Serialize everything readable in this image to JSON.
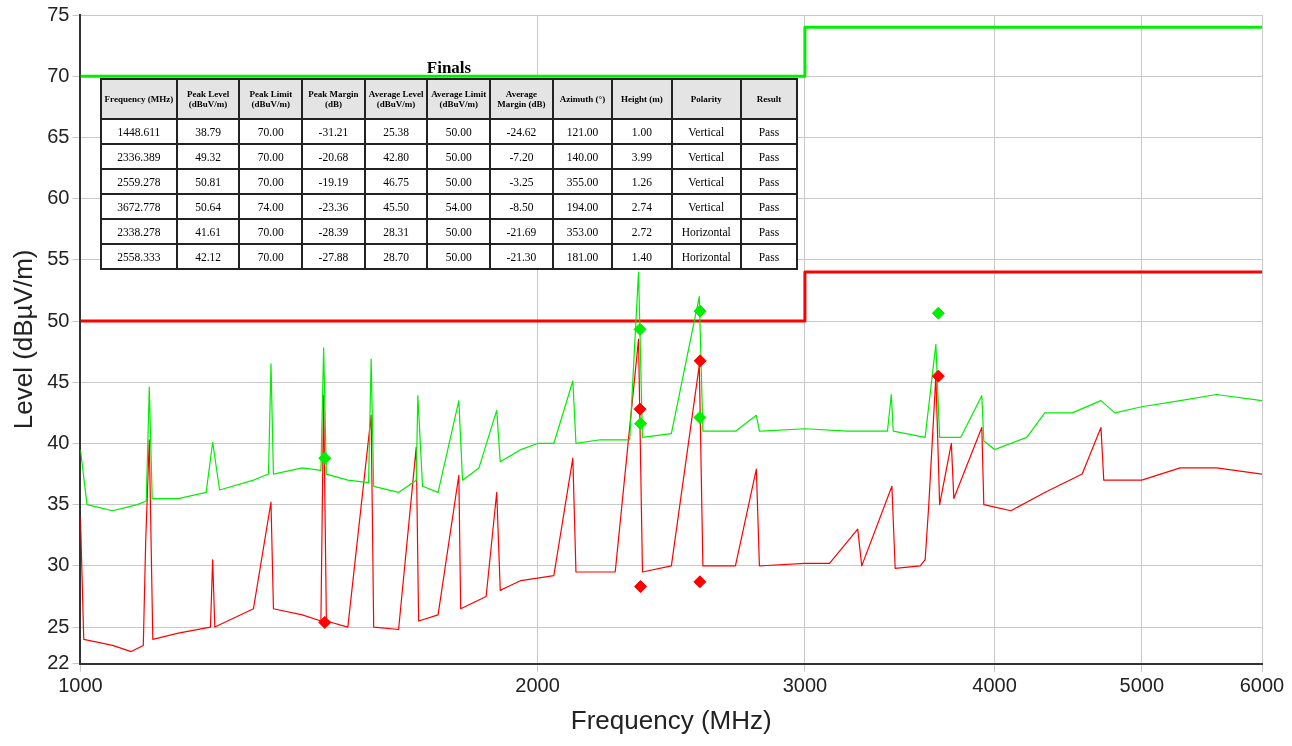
{
  "chart_data": {
    "type": "line",
    "xlabel": "Frequency (MHz)",
    "ylabel": "Level (dBµV/m)",
    "log": "x",
    "grid": true,
    "legend": false,
    "xlim": [
      1000,
      6000
    ],
    "xticks": [
      1000,
      2000,
      3000,
      4000,
      5000,
      6000
    ],
    "ylim": [
      22,
      75
    ],
    "yticks": [
      22,
      25,
      30,
      35,
      40,
      45,
      50,
      55,
      60,
      65,
      70,
      75
    ],
    "series": [
      {
        "color": "#00ee00",
        "marker": "none",
        "x": [
          1000,
          1010,
          1050,
          1090,
          1105,
          1110,
          1115,
          1160,
          1210,
          1222,
          1235,
          1300,
          1330,
          1335,
          1340,
          1400,
          1440,
          1446,
          1452,
          1500,
          1548,
          1554,
          1560,
          1620,
          1664,
          1668,
          1680,
          1720,
          1775,
          1785,
          1830,
          1880,
          1890,
          1950,
          2000,
          2050,
          2110,
          2120,
          2200,
          2300,
          2331,
          2345,
          2450,
          2556,
          2570,
          2700,
          2787,
          2800,
          3000,
          3200,
          3400,
          3420,
          3430,
          3600,
          3659,
          3680,
          3800,
          3923,
          3935,
          4000,
          4200,
          4316,
          4500,
          4700,
          4800,
          5000,
          5300,
          5600,
          6000
        ],
        "values": [
          39.5,
          35,
          34.5,
          35,
          35.3,
          44.6,
          35.5,
          35.5,
          36,
          40.1,
          36.2,
          37,
          37.5,
          46.5,
          37.5,
          38,
          37.8,
          47.8,
          37.5,
          37,
          36.8,
          46.9,
          36.5,
          36,
          37,
          43.9,
          36.5,
          36,
          43.5,
          37,
          38,
          42.7,
          38.5,
          39.5,
          40,
          40,
          45.1,
          40,
          40.3,
          40.3,
          54,
          40.5,
          40.8,
          52,
          41,
          41,
          42.3,
          41,
          41.2,
          41,
          41,
          44,
          41,
          40.5,
          48.1,
          40.5,
          40.5,
          43.9,
          40.2,
          39.5,
          40.5,
          42.5,
          42.5,
          43.5,
          42.5,
          43,
          43.5,
          44,
          43.5
        ]
      },
      {
        "color": "#ff0000",
        "marker": "none",
        "x": [
          1000,
          1005,
          1050,
          1080,
          1100,
          1104,
          1110,
          1116,
          1160,
          1218,
          1222,
          1226,
          1300,
          1335,
          1340,
          1400,
          1440,
          1446,
          1452,
          1500,
          1554,
          1560,
          1620,
          1664,
          1670,
          1720,
          1775,
          1780,
          1850,
          1880,
          1890,
          1950,
          2000,
          2050,
          2110,
          2120,
          2250,
          2331,
          2345,
          2450,
          2556,
          2570,
          2700,
          2787,
          2800,
          3000,
          3114,
          3250,
          3270,
          3423,
          3440,
          3573,
          3600,
          3620,
          3659,
          3680,
          3746,
          3760,
          3923,
          3935,
          4100,
          4316,
          4568,
          4700,
          4720,
          5000,
          5300,
          5600,
          6000
        ],
        "values": [
          34,
          24,
          23.5,
          23,
          23.5,
          32,
          40.3,
          24,
          24.5,
          25,
          30.5,
          25,
          26.5,
          35.2,
          26.5,
          26,
          25.5,
          43.9,
          25.5,
          25,
          42.3,
          25,
          24.8,
          39.7,
          25.5,
          26,
          37.4,
          26.5,
          27.5,
          36,
          28,
          28.8,
          29,
          29.2,
          38.8,
          29.5,
          29.5,
          48.5,
          29.5,
          30,
          46.4,
          30,
          30,
          37.9,
          30,
          30.2,
          30.2,
          33,
          30,
          36.5,
          29.8,
          30,
          30.5,
          35,
          45.5,
          35,
          40,
          35.5,
          41.3,
          35,
          34.5,
          36,
          37.5,
          41.3,
          37,
          37,
          38,
          38,
          37.5
        ]
      },
      {
        "color": "#00ee00",
        "marker": "none",
        "x": [
          1000,
          3000,
          3000,
          6000
        ],
        "values": [
          70,
          70,
          74,
          74
        ]
      },
      {
        "color": "#ff0000",
        "marker": "none",
        "x": [
          1000,
          3000,
          3000,
          6000
        ],
        "values": [
          50,
          50,
          54,
          54
        ]
      },
      {
        "type": "scatter",
        "marker": "diamond",
        "color": "#00ee00",
        "x": [
          1448.611,
          2336.389,
          2559.278,
          3672.778,
          2338.278,
          2558.333
        ],
        "values": [
          38.79,
          49.32,
          50.81,
          50.64,
          41.61,
          42.12
        ]
      },
      {
        "type": "scatter",
        "marker": "diamond",
        "color": "#ff0000",
        "x": [
          1448.611,
          2336.389,
          2559.278,
          3672.778,
          2338.278,
          2558.333
        ],
        "values": [
          25.38,
          42.8,
          46.75,
          45.5,
          28.31,
          28.7
        ]
      }
    ],
    "annotations": [
      "Finals",
      "Frequency (MHz)",
      "Peak Level (dBuV/m)",
      "Peak Limit (dBuV/m)",
      "Peak Margin (dB)",
      "Average Level (dBuV/m)",
      "Average Limit (dBuV/m)",
      "Average Margin (dB)",
      "Azimuth (°)",
      "Height (m)",
      "Polarity",
      "Result",
      "1448.611",
      "38.79",
      "70.00",
      "-31.21",
      "25.38",
      "50.00",
      "-24.62",
      "121.00",
      "1.00",
      "Vertical",
      "Pass",
      "2336.389",
      "49.32",
      "70.00",
      "-20.68",
      "42.80",
      "50.00",
      "-7.20",
      "140.00",
      "3.99",
      "Vertical",
      "Pass",
      "2559.278",
      "50.81",
      "70.00",
      "-19.19",
      "46.75",
      "50.00",
      "-3.25",
      "355.00",
      "1.26",
      "Vertical",
      "Pass",
      "3672.778",
      "50.64",
      "74.00",
      "-23.36",
      "45.50",
      "54.00",
      "-8.50",
      "194.00",
      "2.74",
      "Vertical",
      "Pass",
      "2338.278",
      "41.61",
      "70.00",
      "-28.39",
      "28.31",
      "50.00",
      "-21.69",
      "353.00",
      "2.72",
      "Horizontal",
      "Pass",
      "2558.333",
      "42.12",
      "70.00",
      "-27.88",
      "28.70",
      "50.00",
      "-21.30",
      "181.00",
      "1.40",
      "Horizontal",
      "Pass"
    ]
  }
}
